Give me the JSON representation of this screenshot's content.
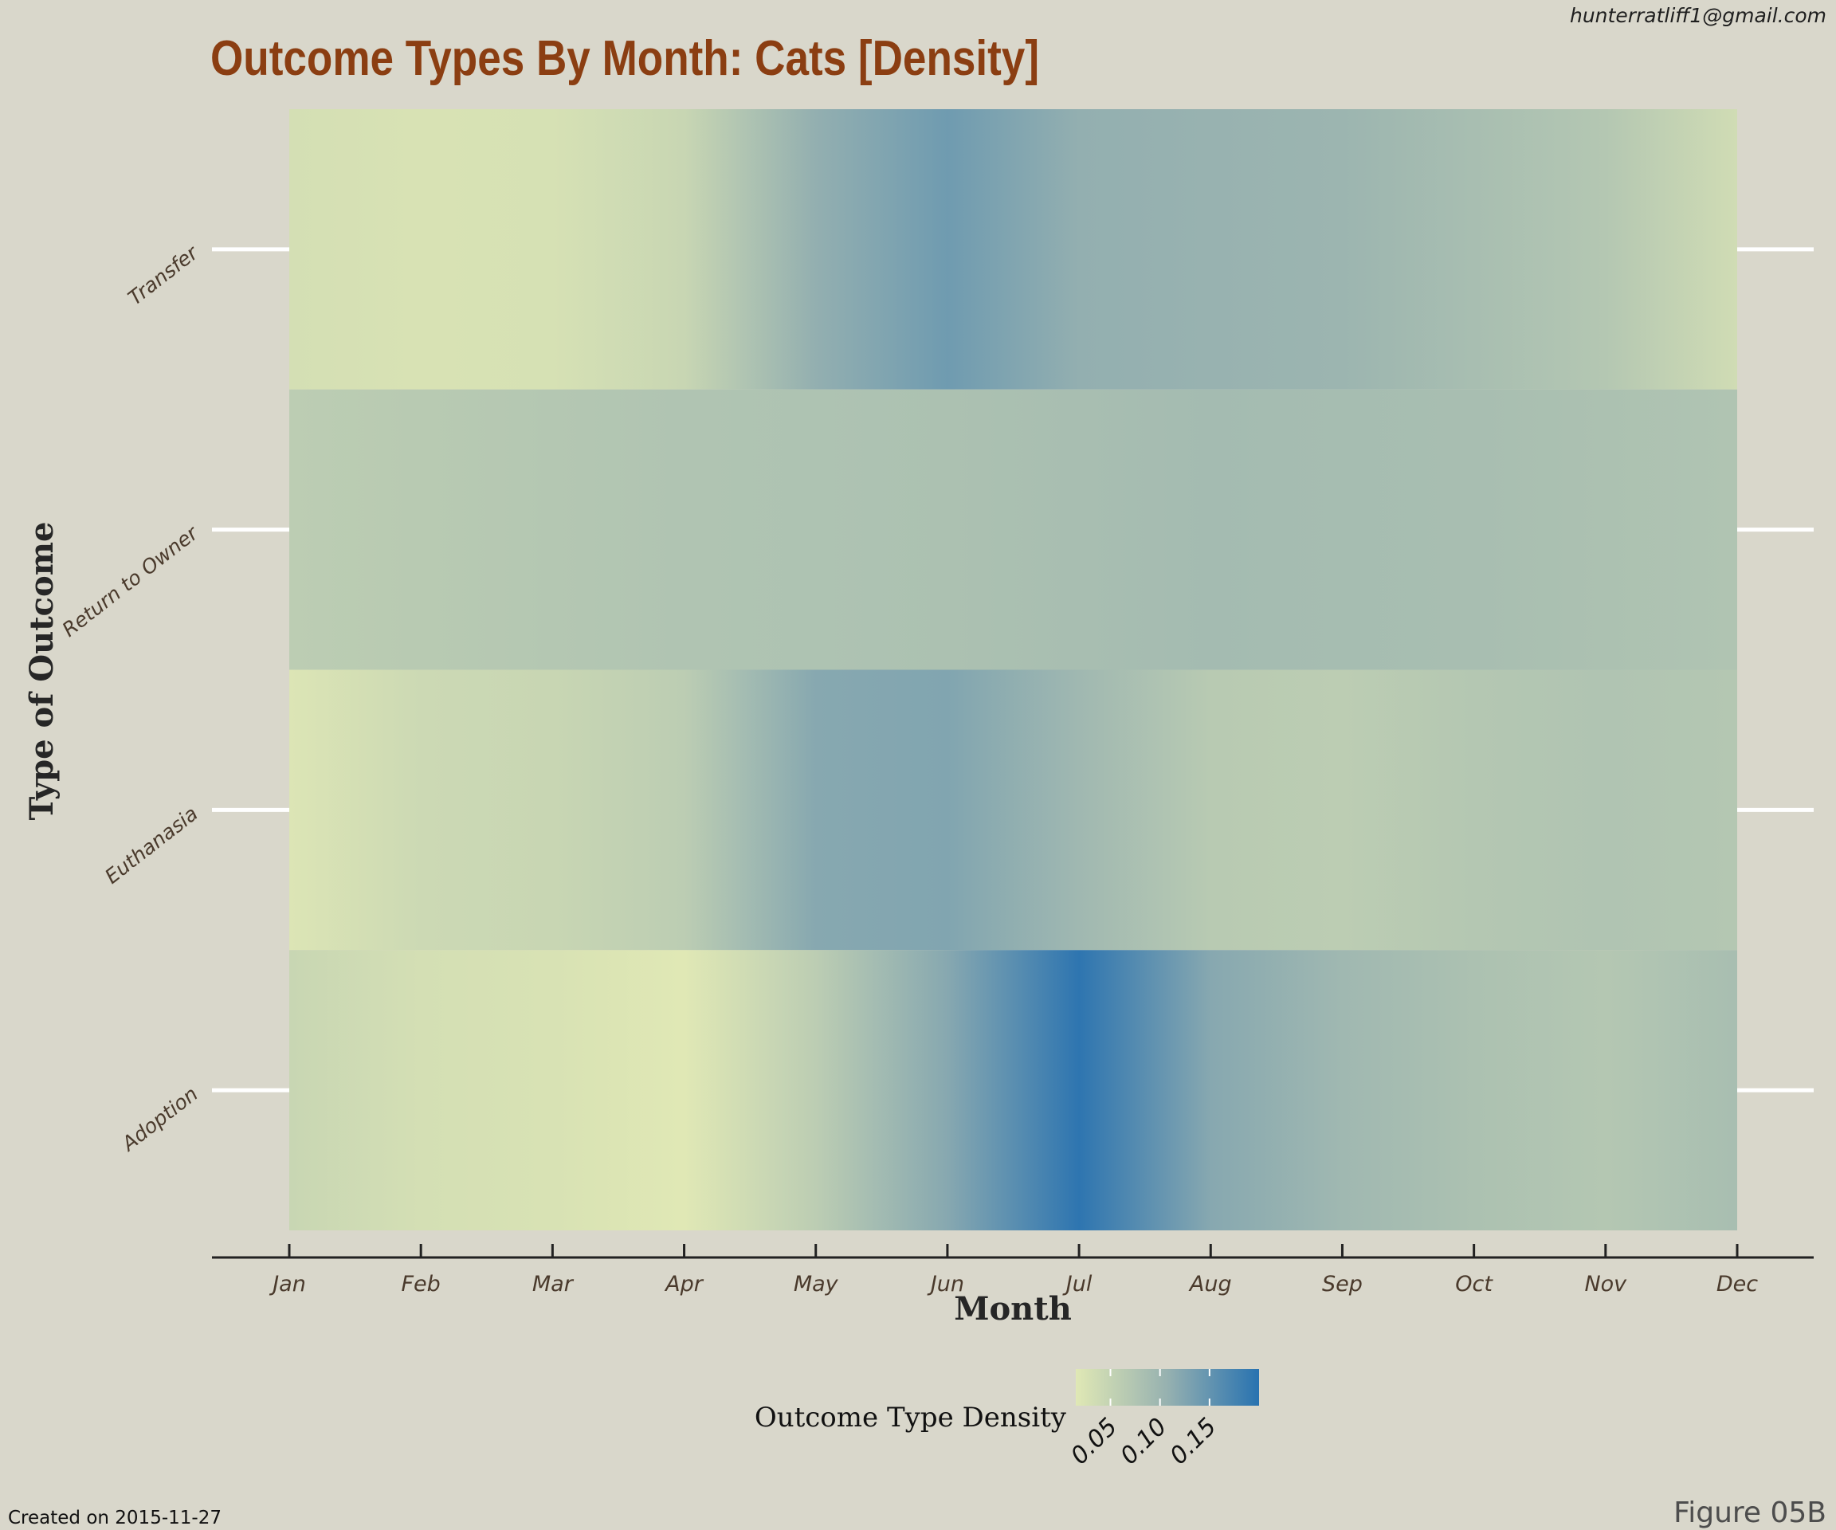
{
  "chart_data": {
    "type": "heatmap",
    "title": "Outcome Types By Month: Cats [Density]",
    "xlabel": "Month",
    "ylabel": "Type of Outcome",
    "categories": [
      "Jan",
      "Feb",
      "Mar",
      "Apr",
      "May",
      "Jun",
      "Jul",
      "Aug",
      "Sep",
      "Oct",
      "Nov",
      "Dec"
    ],
    "rows": [
      "Transfer",
      "Return to Owner",
      "Euthanasia",
      "Adoption"
    ],
    "values": [
      [
        0.03,
        0.025,
        0.027,
        0.045,
        0.11,
        0.14,
        0.11,
        0.105,
        0.1,
        0.085,
        0.07,
        0.035
      ],
      [
        0.06,
        0.065,
        0.07,
        0.075,
        0.078,
        0.08,
        0.085,
        0.09,
        0.088,
        0.085,
        0.08,
        0.075
      ],
      [
        0.02,
        0.04,
        0.045,
        0.06,
        0.12,
        0.125,
        0.095,
        0.065,
        0.06,
        0.07,
        0.075,
        0.07
      ],
      [
        0.045,
        0.03,
        0.025,
        0.015,
        0.06,
        0.12,
        0.195,
        0.12,
        0.095,
        0.08,
        0.07,
        0.085
      ]
    ],
    "legend": {
      "title": "Outcome Type Density",
      "ticks": [
        "0.05",
        "0.10",
        "0.15"
      ],
      "tick_values": [
        0.05,
        0.1,
        0.15
      ],
      "range": [
        0.015,
        0.2
      ],
      "placement": "bottom"
    },
    "colors": {
      "low": "#e0e8b5",
      "mid": "#96b1b0",
      "high": "#2872b0",
      "title": "#8b3e12",
      "background": "#d9d7cb"
    },
    "grid": false
  },
  "email": "hunterratliff1@gmail.com",
  "created": "Created on 2015-11-27",
  "figure_label": "Figure 05B"
}
